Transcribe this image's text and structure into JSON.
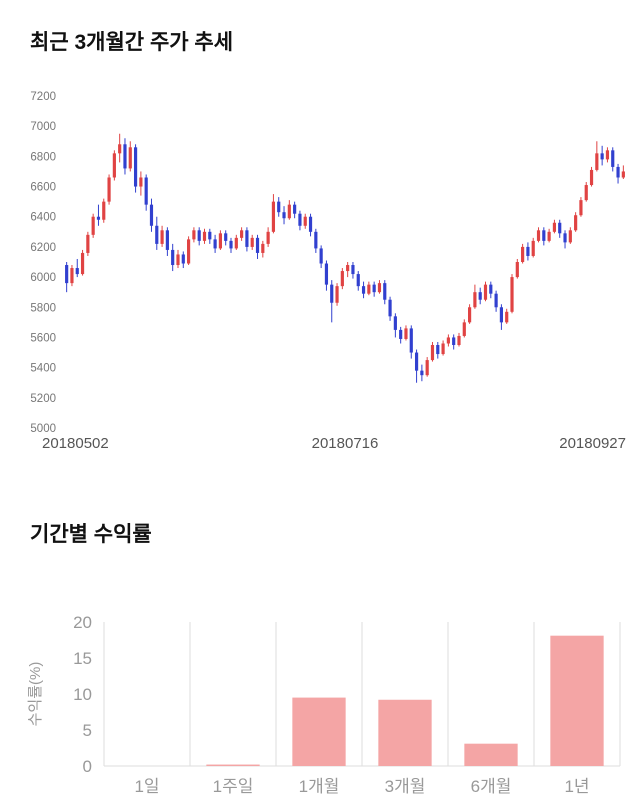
{
  "chart_data": [
    {
      "type": "candlestick",
      "title": "최근 3개월간 주가 추세",
      "ylim": [
        5000,
        7200
      ],
      "ytick_step": 200,
      "x_labels": [
        "20180502",
        "20180716",
        "20180927"
      ],
      "colors": {
        "up": "#e04343",
        "down": "#3140cf",
        "tick_text": "#777777",
        "date_text": "#555555"
      },
      "candles": [
        [
          6080,
          6100,
          5900,
          5960
        ],
        [
          5960,
          6080,
          5940,
          6060
        ],
        [
          6060,
          6120,
          6000,
          6020
        ],
        [
          6020,
          6180,
          6010,
          6160
        ],
        [
          6160,
          6300,
          6140,
          6280
        ],
        [
          6280,
          6420,
          6260,
          6400
        ],
        [
          6400,
          6480,
          6340,
          6380
        ],
        [
          6380,
          6520,
          6360,
          6500
        ],
        [
          6500,
          6680,
          6480,
          6660
        ],
        [
          6660,
          6840,
          6640,
          6820
        ],
        [
          6820,
          6950,
          6760,
          6880
        ],
        [
          6880,
          6920,
          6680,
          6720
        ],
        [
          6720,
          6900,
          6700,
          6860
        ],
        [
          6860,
          6880,
          6560,
          6600
        ],
        [
          6600,
          6700,
          6540,
          6660
        ],
        [
          6660,
          6680,
          6440,
          6480
        ],
        [
          6480,
          6520,
          6300,
          6340
        ],
        [
          6340,
          6400,
          6180,
          6220
        ],
        [
          6220,
          6340,
          6200,
          6310
        ],
        [
          6310,
          6330,
          6140,
          6180
        ],
        [
          6180,
          6220,
          6040,
          6080
        ],
        [
          6080,
          6180,
          6060,
          6150
        ],
        [
          6150,
          6170,
          6060,
          6090
        ],
        [
          6090,
          6270,
          6080,
          6250
        ],
        [
          6250,
          6330,
          6230,
          6310
        ],
        [
          6310,
          6330,
          6210,
          6240
        ],
        [
          6240,
          6320,
          6220,
          6300
        ],
        [
          6300,
          6320,
          6220,
          6250
        ],
        [
          6250,
          6280,
          6160,
          6190
        ],
        [
          6190,
          6310,
          6180,
          6290
        ],
        [
          6290,
          6310,
          6210,
          6240
        ],
        [
          6240,
          6260,
          6160,
          6190
        ],
        [
          6190,
          6280,
          6180,
          6260
        ],
        [
          6260,
          6330,
          6240,
          6310
        ],
        [
          6310,
          6330,
          6170,
          6200
        ],
        [
          6200,
          6280,
          6180,
          6260
        ],
        [
          6260,
          6280,
          6120,
          6160
        ],
        [
          6160,
          6240,
          6130,
          6220
        ],
        [
          6220,
          6330,
          6200,
          6300
        ],
        [
          6300,
          6550,
          6290,
          6500
        ],
        [
          6500,
          6530,
          6400,
          6430
        ],
        [
          6430,
          6470,
          6350,
          6390
        ],
        [
          6390,
          6510,
          6380,
          6480
        ],
        [
          6480,
          6500,
          6390,
          6420
        ],
        [
          6420,
          6440,
          6310,
          6340
        ],
        [
          6340,
          6420,
          6320,
          6400
        ],
        [
          6400,
          6420,
          6270,
          6300
        ],
        [
          6300,
          6320,
          6160,
          6190
        ],
        [
          6190,
          6210,
          6060,
          6090
        ],
        [
          6090,
          6110,
          5910,
          5950
        ],
        [
          5950,
          5980,
          5700,
          5830
        ],
        [
          5830,
          5960,
          5810,
          5940
        ],
        [
          5940,
          6060,
          5920,
          6040
        ],
        [
          6040,
          6100,
          6000,
          6080
        ],
        [
          6080,
          6100,
          5990,
          6020
        ],
        [
          6020,
          6040,
          5910,
          5940
        ],
        [
          5940,
          5970,
          5860,
          5890
        ],
        [
          5890,
          5970,
          5880,
          5950
        ],
        [
          5950,
          5970,
          5870,
          5900
        ],
        [
          5900,
          5980,
          5890,
          5960
        ],
        [
          5960,
          5980,
          5820,
          5850
        ],
        [
          5850,
          5870,
          5710,
          5740
        ],
        [
          5740,
          5760,
          5600,
          5650
        ],
        [
          5650,
          5670,
          5560,
          5590
        ],
        [
          5590,
          5680,
          5580,
          5660
        ],
        [
          5660,
          5680,
          5460,
          5500
        ],
        [
          5500,
          5520,
          5300,
          5380
        ],
        [
          5380,
          5420,
          5310,
          5350
        ],
        [
          5350,
          5470,
          5340,
          5450
        ],
        [
          5450,
          5570,
          5440,
          5550
        ],
        [
          5550,
          5570,
          5460,
          5490
        ],
        [
          5490,
          5580,
          5480,
          5560
        ],
        [
          5560,
          5620,
          5540,
          5600
        ],
        [
          5600,
          5620,
          5520,
          5550
        ],
        [
          5550,
          5630,
          5540,
          5610
        ],
        [
          5610,
          5720,
          5600,
          5700
        ],
        [
          5700,
          5820,
          5690,
          5800
        ],
        [
          5800,
          5950,
          5790,
          5900
        ],
        [
          5900,
          5930,
          5820,
          5850
        ],
        [
          5850,
          5970,
          5840,
          5950
        ],
        [
          5950,
          5970,
          5860,
          5890
        ],
        [
          5890,
          5910,
          5770,
          5800
        ],
        [
          5800,
          5820,
          5650,
          5700
        ],
        [
          5700,
          5790,
          5690,
          5770
        ],
        [
          5770,
          6020,
          5760,
          6000
        ],
        [
          6000,
          6120,
          5990,
          6100
        ],
        [
          6100,
          6220,
          6090,
          6200
        ],
        [
          6200,
          6230,
          6110,
          6140
        ],
        [
          6140,
          6260,
          6130,
          6240
        ],
        [
          6240,
          6330,
          6230,
          6310
        ],
        [
          6310,
          6330,
          6210,
          6240
        ],
        [
          6240,
          6320,
          6230,
          6300
        ],
        [
          6300,
          6380,
          6290,
          6360
        ],
        [
          6360,
          6380,
          6260,
          6290
        ],
        [
          6290,
          6310,
          6190,
          6230
        ],
        [
          6230,
          6330,
          6220,
          6310
        ],
        [
          6310,
          6430,
          6300,
          6410
        ],
        [
          6410,
          6530,
          6400,
          6510
        ],
        [
          6510,
          6630,
          6500,
          6610
        ],
        [
          6610,
          6730,
          6600,
          6710
        ],
        [
          6710,
          6900,
          6700,
          6820
        ],
        [
          6820,
          6870,
          6740,
          6780
        ],
        [
          6780,
          6860,
          6760,
          6840
        ],
        [
          6840,
          6860,
          6700,
          6730
        ],
        [
          6730,
          6750,
          6620,
          6660
        ],
        [
          6660,
          6740,
          6650,
          6700
        ]
      ]
    },
    {
      "type": "bar",
      "title": "기간별 수익률",
      "ylabel": "수익률(%)",
      "categories": [
        "1일",
        "1주일",
        "1개월",
        "3개월",
        "6개월",
        "1년"
      ],
      "values": [
        0,
        0.2,
        9.5,
        9.2,
        3.1,
        18.1
      ],
      "ylim": [
        0,
        20
      ],
      "yticks": [
        0,
        5,
        10,
        15,
        20
      ],
      "colors": {
        "bar": "#f4a5a5",
        "grid": "#dddddd",
        "axis_text": "#999999"
      }
    }
  ]
}
